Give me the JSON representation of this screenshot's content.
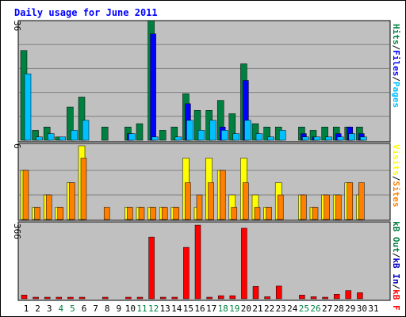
{
  "title": "Daily usage for June 2011",
  "colors": {
    "hits": "#008040",
    "files": "#0000ff",
    "pages": "#00c0ff",
    "visits": "#ffff00",
    "sites": "#ff8000",
    "kbin": "#0000c0",
    "kbout": "#008040",
    "kbf": "#ff0000",
    "plot_bg": "#c0c0c0",
    "title": "#0000ff",
    "weekend": "#008040"
  },
  "chart_data": [
    {
      "type": "bar",
      "panel": "hits-files-pages",
      "ylabel_parts": [
        "Pages",
        "/",
        "Files",
        "/",
        "Hits"
      ],
      "max_label": "36",
      "ylim": [
        0,
        36
      ],
      "categories": [
        "1",
        "2",
        "3",
        "4",
        "5",
        "6",
        "7",
        "8",
        "9",
        "10",
        "11",
        "12",
        "13",
        "14",
        "15",
        "16",
        "17",
        "18",
        "19",
        "20",
        "21",
        "22",
        "23",
        "24",
        "25",
        "26",
        "27",
        "28",
        "29",
        "30",
        "31"
      ],
      "series": [
        {
          "key": "hits",
          "values": [
            27,
            3,
            4,
            1,
            10,
            13,
            0,
            4,
            0,
            4,
            5,
            36,
            3,
            4,
            14,
            9,
            9,
            12,
            8,
            23,
            5,
            4,
            4,
            0,
            4,
            3,
            4,
            4,
            4,
            4,
            0
          ]
        },
        {
          "key": "files",
          "values": [
            0,
            0,
            0,
            0,
            0,
            0,
            0,
            0,
            0,
            2,
            0,
            32,
            0,
            0,
            11,
            0,
            0,
            4,
            0,
            18,
            0,
            0,
            0,
            0,
            2,
            1,
            0,
            2,
            4,
            2,
            0
          ]
        },
        {
          "key": "pages",
          "values": [
            20,
            1,
            2,
            1,
            3,
            6,
            0,
            0,
            0,
            2,
            0,
            1,
            0,
            1,
            6,
            3,
            6,
            3,
            2,
            6,
            2,
            1,
            3,
            0,
            1,
            1,
            1,
            1,
            2,
            1,
            0
          ]
        }
      ]
    },
    {
      "type": "bar",
      "panel": "visits-sites",
      "ylabel_parts": [
        "Sites",
        "/",
        "Visits"
      ],
      "max_label": "6",
      "ylim": [
        0,
        6
      ],
      "categories": [
        "1",
        "2",
        "3",
        "4",
        "5",
        "6",
        "7",
        "8",
        "9",
        "10",
        "11",
        "12",
        "13",
        "14",
        "15",
        "16",
        "17",
        "18",
        "19",
        "20",
        "21",
        "22",
        "23",
        "24",
        "25",
        "26",
        "27",
        "28",
        "29",
        "30",
        "31"
      ],
      "series": [
        {
          "key": "visits",
          "values": [
            4,
            1,
            2,
            1,
            3,
            6,
            0,
            0,
            0,
            1,
            1,
            1,
            1,
            1,
            5,
            1,
            5,
            4,
            2,
            5,
            2,
            1,
            3,
            0,
            2,
            1,
            2,
            2,
            3,
            2,
            0
          ]
        },
        {
          "key": "sites",
          "values": [
            4,
            1,
            2,
            1,
            3,
            5,
            0,
            1,
            0,
            1,
            1,
            1,
            1,
            1,
            3,
            2,
            3,
            4,
            1,
            3,
            1,
            1,
            2,
            0,
            2,
            1,
            2,
            2,
            3,
            3,
            0
          ]
        }
      ]
    },
    {
      "type": "bar",
      "panel": "kb",
      "ylabel_parts": [
        "kB F",
        "/",
        "kB In",
        "/",
        "kB Out"
      ],
      "max_label": "366",
      "ylim": [
        0,
        366
      ],
      "categories": [
        "1",
        "2",
        "3",
        "4",
        "5",
        "6",
        "7",
        "8",
        "9",
        "10",
        "11",
        "12",
        "13",
        "14",
        "15",
        "16",
        "17",
        "18",
        "19",
        "20",
        "21",
        "22",
        "23",
        "24",
        "25",
        "26",
        "27",
        "28",
        "29",
        "30",
        "31"
      ],
      "series": [
        {
          "key": "kbf",
          "values": [
            18,
            4,
            4,
            4,
            4,
            4,
            0,
            4,
            0,
            4,
            4,
            300,
            4,
            4,
            250,
            358,
            4,
            15,
            15,
            343,
            60,
            10,
            62,
            0,
            18,
            10,
            4,
            22,
            40,
            30,
            0
          ]
        }
      ]
    }
  ],
  "weekend_days": [
    "4",
    "5",
    "11",
    "12",
    "18",
    "19",
    "25",
    "26"
  ]
}
